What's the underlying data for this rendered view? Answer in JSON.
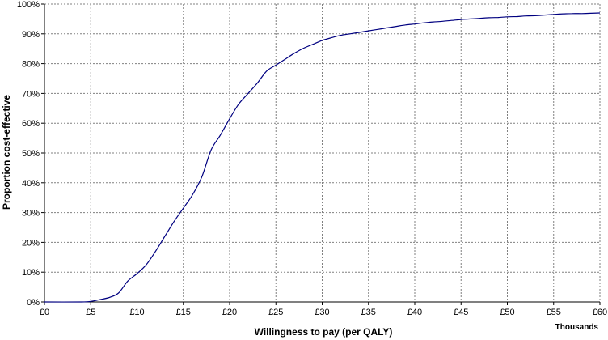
{
  "chart_data": {
    "type": "line",
    "title": "",
    "xlabel": "Willingness to pay (per QALY)",
    "ylabel": "Proportion cost-effective",
    "x_units_label": "Thousands",
    "xlim": [
      0,
      60
    ],
    "ylim": [
      0,
      1
    ],
    "grid": true,
    "grid_style": "dashed",
    "x_ticks": [
      0,
      5,
      10,
      15,
      20,
      25,
      30,
      35,
      40,
      45,
      50,
      55,
      60
    ],
    "x_tick_labels": [
      "£0",
      "£5",
      "£10",
      "£15",
      "£20",
      "£25",
      "£30",
      "£35",
      "£40",
      "£45",
      "£50",
      "£55",
      "£60"
    ],
    "y_ticks": [
      0,
      0.1,
      0.2,
      0.3,
      0.4,
      0.5,
      0.6,
      0.7,
      0.8,
      0.9,
      1.0
    ],
    "y_tick_labels": [
      "0%",
      "10%",
      "20%",
      "30%",
      "40%",
      "50%",
      "60%",
      "70%",
      "80%",
      "90%",
      "100%"
    ],
    "line_color": "#000080",
    "series": [
      {
        "x": [
          0,
          4,
          5,
          6,
          7,
          8,
          9,
          10,
          11,
          12,
          13,
          14,
          15,
          16,
          17,
          18,
          19,
          20,
          21,
          22,
          23,
          24,
          25,
          26,
          27,
          28,
          29,
          30,
          31,
          32,
          33,
          34,
          35,
          36,
          37,
          38,
          39,
          40,
          41,
          42,
          43,
          44,
          45,
          46,
          47,
          48,
          49,
          50,
          51,
          52,
          53,
          54,
          55,
          56,
          57,
          58,
          59,
          60
        ],
        "y": [
          0.0,
          0.0,
          0.002,
          0.008,
          0.015,
          0.03,
          0.07,
          0.095,
          0.125,
          0.17,
          0.22,
          0.27,
          0.315,
          0.36,
          0.42,
          0.51,
          0.56,
          0.615,
          0.665,
          0.7,
          0.735,
          0.775,
          0.795,
          0.815,
          0.835,
          0.852,
          0.865,
          0.878,
          0.887,
          0.895,
          0.9,
          0.905,
          0.91,
          0.915,
          0.92,
          0.925,
          0.93,
          0.933,
          0.937,
          0.94,
          0.942,
          0.945,
          0.948,
          0.95,
          0.952,
          0.954,
          0.955,
          0.957,
          0.958,
          0.96,
          0.961,
          0.963,
          0.965,
          0.967,
          0.968,
          0.968,
          0.969,
          0.97
        ]
      }
    ]
  }
}
